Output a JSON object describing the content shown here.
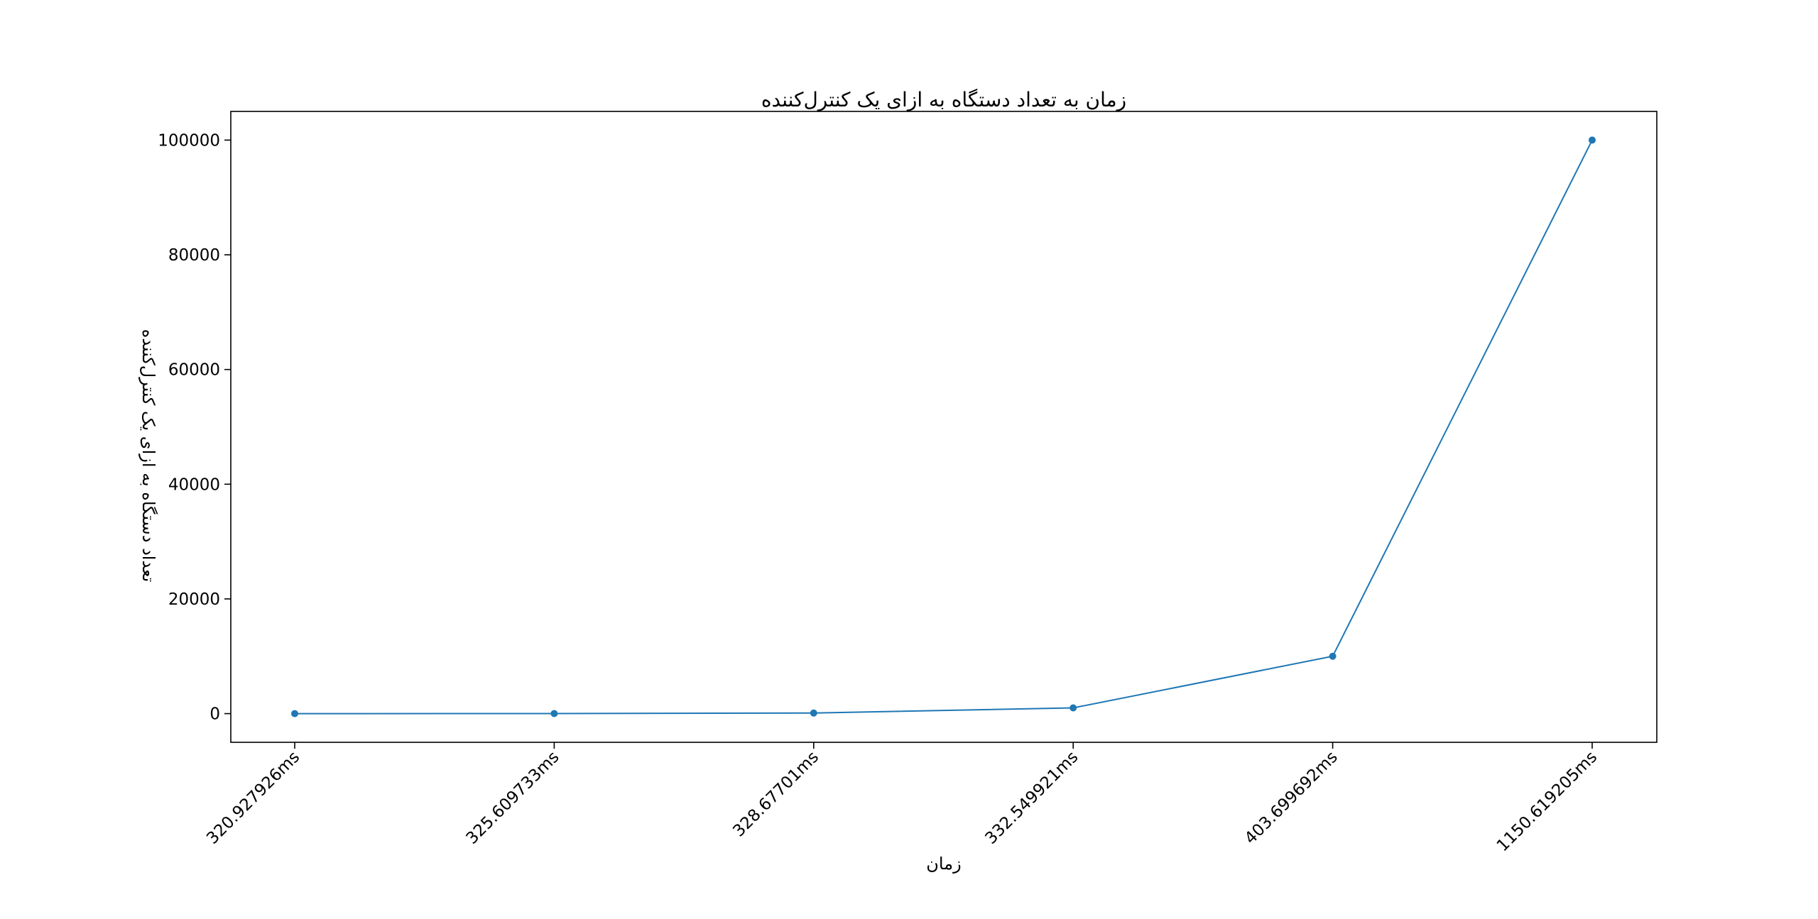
{
  "chart_data": {
    "type": "line",
    "title": "زمان به تعداد دستگاه به ازای یک کنترل‌کننده",
    "xlabel": "زمان",
    "ylabel": "تعداد دستگاه به ازای یک کنترل‌کننده",
    "categories": [
      "320.927926ms",
      "325.609733ms",
      "328.67701ms",
      "332.549921ms",
      "403.699692ms",
      "1150.619205ms"
    ],
    "series": [
      {
        "values": [
          1,
          10,
          100,
          1000,
          10000,
          100000
        ]
      }
    ],
    "y_ticks": [
      0,
      20000,
      40000,
      60000,
      80000,
      100000
    ],
    "ylim": [
      -5000,
      105000
    ],
    "grid": false,
    "colors": {
      "line": "#1f77b4",
      "marker": "#1f77b4",
      "axes": "#000000"
    }
  }
}
